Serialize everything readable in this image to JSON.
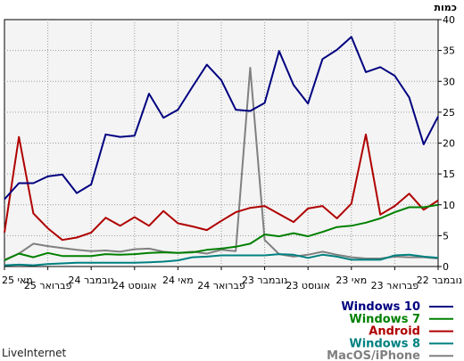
{
  "brand": "LiveInternet",
  "chart_data": {
    "type": "line",
    "ylabel": "כמות",
    "ylim": [
      0,
      40
    ],
    "yticks": [
      0,
      5,
      10,
      15,
      20,
      25,
      30,
      35,
      40
    ],
    "grid": true,
    "legend_position": "bottom-right",
    "x_tick_labels": [
      "מאי 25",
      "פברואר 25",
      "נובמבר 24",
      "אוגוסט 24",
      "מאי 24",
      "פברואר 24",
      "נובמבר 23",
      "אוגוסט 23",
      "מאי 23",
      "פברואר 23",
      "נובמבר 22"
    ],
    "series": [
      {
        "name": "Windows 10",
        "color": "#000080",
        "values": [
          24.3,
          19.8,
          27.4,
          30.9,
          32.3,
          31.5,
          37.2,
          35.1,
          33.6,
          26.4,
          29.4,
          34.9,
          26.5,
          25.2,
          25.4,
          30.2,
          32.7,
          29.1,
          25.4,
          24.1,
          28.0,
          21.2,
          21.0,
          21.4,
          13.3,
          11.9,
          14.9,
          14.6,
          13.5,
          13.5,
          10.9
        ]
      },
      {
        "name": "Windows 7",
        "color": "#008000",
        "values": [
          10.0,
          9.6,
          9.6,
          8.8,
          7.8,
          7.1,
          6.6,
          6.4,
          5.6,
          4.9,
          5.4,
          4.9,
          5.2,
          3.7,
          3.2,
          2.9,
          2.7,
          2.3,
          2.2,
          2.3,
          2.2,
          2.0,
          1.9,
          2.0,
          1.7,
          1.7,
          1.7,
          2.2,
          1.5,
          2.1,
          1.0
        ]
      },
      {
        "name": "Android",
        "color": "#B00000",
        "values": [
          10.7,
          9.2,
          11.8,
          9.8,
          8.4,
          21.4,
          10.2,
          7.8,
          9.8,
          9.4,
          7.2,
          8.5,
          9.8,
          9.5,
          8.8,
          7.4,
          5.9,
          6.5,
          7.0,
          9.0,
          6.6,
          8.0,
          6.6,
          7.9,
          5.5,
          4.7,
          4.3,
          6.2,
          8.6,
          21.0,
          5.5
        ]
      },
      {
        "name": "Windows 8",
        "color": "#008080",
        "values": [
          1.4,
          1.6,
          1.9,
          1.8,
          1.1,
          1.1,
          1.1,
          1.6,
          1.9,
          1.4,
          1.9,
          2.0,
          1.8,
          1.8,
          1.8,
          1.8,
          1.6,
          1.5,
          1.0,
          0.8,
          0.7,
          0.6,
          0.6,
          0.6,
          0.6,
          0.6,
          0.5,
          0.4,
          0.2,
          0.3,
          0.2
        ]
      },
      {
        "name": "MacOS/iPhone",
        "color": "#808080",
        "values": [
          1.3,
          1.5,
          1.5,
          1.6,
          1.3,
          1.3,
          1.5,
          1.9,
          2.4,
          1.9,
          1.6,
          2.0,
          4.3,
          32.2,
          2.5,
          2.7,
          2.1,
          2.4,
          2.2,
          2.4,
          2.9,
          2.8,
          2.4,
          2.6,
          2.5,
          2.7,
          3.0,
          3.3,
          3.7,
          2.1,
          1.1
        ]
      }
    ]
  }
}
